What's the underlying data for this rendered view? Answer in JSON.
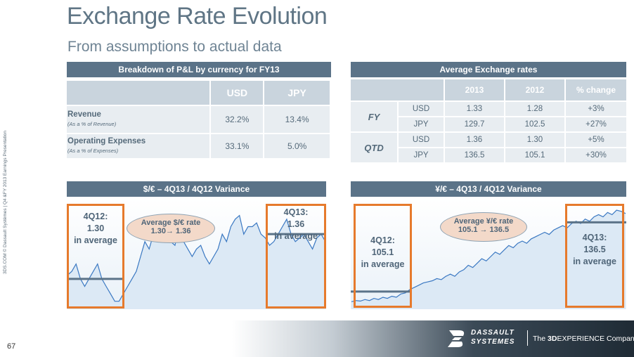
{
  "slide": {
    "title": "Exchange Rate Evolution",
    "subtitle": "From assumptions to actual data",
    "side_note": "3DS.COM © Dassault Systèmes | Q4 &FY 2013 Earnings Presentation",
    "page_number": "67"
  },
  "pl_table": {
    "header": "Breakdown of P&L by currency for FY13",
    "columns": [
      "USD",
      "JPY"
    ],
    "rows": [
      {
        "label": "Revenue",
        "sublabel": "(As a % of Revenue)",
        "usd": "32.2%",
        "jpy": "13.4%"
      },
      {
        "label": "Operating Expenses",
        "sublabel": "(As a % of Expenses)",
        "usd": "33.1%",
        "jpy": "5.0%"
      }
    ]
  },
  "fx_table": {
    "header": "Average Exchange rates",
    "columns": [
      "2013",
      "2012",
      "% change"
    ],
    "groups": [
      {
        "label": "FY",
        "rows": [
          {
            "currency": "USD",
            "y2013": "1.33",
            "y2012": "1.28",
            "change": "+3%"
          },
          {
            "currency": "JPY",
            "y2013": "129.7",
            "y2012": "102.5",
            "change": "+27%"
          }
        ]
      },
      {
        "label": "QTD",
        "rows": [
          {
            "currency": "USD",
            "y2013": "1.36",
            "y2012": "1.30",
            "change": "+5%"
          },
          {
            "currency": "JPY",
            "y2013": "136.5",
            "y2012": "105.1",
            "change": "+30%"
          }
        ]
      }
    ]
  },
  "charts": {
    "usd": {
      "header": "$/€ – 4Q13 / 4Q12 Variance",
      "average_label": "Average $/€ rate",
      "average_range": "1.30→ 1.36",
      "left_box": [
        "4Q12:",
        "1.30",
        "in average"
      ],
      "right_box": [
        "4Q13:",
        "1.36",
        "in average"
      ]
    },
    "jpy": {
      "header": "¥/€ – 4Q13 / 4Q12 Variance",
      "average_label": "Average ¥/€ rate",
      "average_range": "105.1 → 136.5",
      "left_box": [
        "4Q12:",
        "105.1",
        "in average"
      ],
      "right_box": [
        "4Q13:",
        "136.5",
        "in average"
      ]
    }
  },
  "chart_data": [
    {
      "type": "line",
      "title": "$/€ – 4Q13 / 4Q12 Variance",
      "series": [
        {
          "name": "$/€",
          "values": [
            1.305,
            1.31,
            1.32,
            1.3,
            1.29,
            1.3,
            1.31,
            1.32,
            1.3,
            1.29,
            1.28,
            1.27,
            1.27,
            1.28,
            1.29,
            1.3,
            1.31,
            1.33,
            1.35,
            1.34,
            1.36,
            1.37,
            1.355,
            1.36,
            1.35,
            1.345,
            1.37,
            1.35,
            1.34,
            1.33,
            1.34,
            1.345,
            1.33,
            1.32,
            1.33,
            1.34,
            1.36,
            1.35,
            1.37,
            1.38,
            1.385,
            1.36,
            1.37,
            1.37,
            1.375,
            1.36,
            1.355,
            1.345,
            1.35,
            1.36,
            1.37,
            1.38,
            1.36,
            1.35,
            1.355,
            1.36,
            1.35,
            1.34,
            1.355,
            1.36,
            1.35
          ]
        }
      ],
      "averages": {
        "4Q12": 1.3,
        "4Q13": 1.36
      },
      "ylim": [
        1.265,
        1.395
      ]
    },
    {
      "type": "line",
      "title": "¥/€ – 4Q13 / 4Q12 Variance",
      "series": [
        {
          "name": "¥/€",
          "values": [
            100.5,
            101,
            100.8,
            101.5,
            101,
            102,
            101.5,
            102.5,
            102,
            103,
            102.5,
            104,
            104.5,
            106,
            107,
            108,
            109,
            109.5,
            110,
            111,
            110.5,
            112,
            113,
            112,
            114,
            115,
            117,
            116,
            118,
            120,
            119,
            121,
            123,
            122,
            124,
            126,
            125,
            127,
            128,
            127,
            129,
            130,
            131,
            132,
            131,
            133,
            134,
            135,
            134,
            136,
            137,
            136,
            138,
            137,
            139,
            140,
            139,
            141,
            140,
            142,
            141.5,
            140.5
          ]
        }
      ],
      "averages": {
        "4Q12": 105.1,
        "4Q13": 136.5
      },
      "ylim": [
        99,
        143
      ]
    }
  ],
  "footer": {
    "brand_line1": "DASSAULT",
    "brand_line2": "SYSTEMES",
    "tagline_pre": "The ",
    "tagline_3d": "3D",
    "tagline_mid": "EXPERIENCE",
    "tagline_post": " Company"
  }
}
